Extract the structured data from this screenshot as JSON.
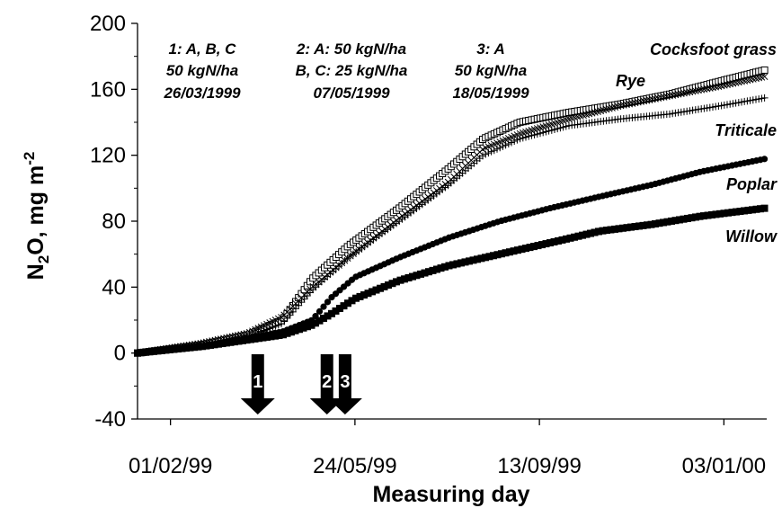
{
  "chart_data": {
    "type": "scatter",
    "xlabel": "Measuring day",
    "ylabel": "N2O, mg m-2",
    "ylabel_parts": {
      "n": "N",
      "sub": "2",
      "mid": "O, mg m",
      "sup": "-2"
    },
    "ylim": [
      -40,
      200
    ],
    "xlim": [
      "1999-01-12",
      "2000-01-29"
    ],
    "y_ticks": [
      -40,
      0,
      40,
      80,
      120,
      160,
      200
    ],
    "x_ticks": [
      {
        "date": "1999-02-01",
        "label": "01/02/99"
      },
      {
        "date": "1999-05-24",
        "label": "24/05/99"
      },
      {
        "date": "1999-09-13",
        "label": "13/09/99"
      },
      {
        "date": "2000-01-03",
        "label": "03/01/00"
      }
    ],
    "series": [
      {
        "name": "Cockfoot grass",
        "label": "Cocksfoot grass",
        "marker": "open-square",
        "x": [
          "1999-01-12",
          "1999-02-20",
          "1999-03-20",
          "1999-04-10",
          "1999-04-28",
          "1999-05-20",
          "1999-06-20",
          "1999-07-20",
          "1999-08-10",
          "1999-09-01",
          "1999-10-01",
          "1999-11-01",
          "1999-12-01",
          "2000-01-01",
          "2000-01-29"
        ],
        "y": [
          0,
          5,
          11,
          20,
          45,
          65,
          88,
          112,
          130,
          140,
          146,
          151,
          157,
          165,
          172
        ]
      },
      {
        "name": "Rye",
        "label": "Rye",
        "marker": "x",
        "x": [
          "1999-01-12",
          "1999-02-20",
          "1999-03-20",
          "1999-04-10",
          "1999-04-28",
          "1999-05-20",
          "1999-06-20",
          "1999-07-20",
          "1999-08-10",
          "1999-09-01",
          "1999-10-01",
          "1999-11-01",
          "1999-12-01",
          "2000-01-01",
          "2000-01-29"
        ],
        "y": [
          0,
          6,
          12,
          22,
          40,
          58,
          82,
          104,
          124,
          133,
          142,
          150,
          156,
          162,
          168
        ]
      },
      {
        "name": "Triticale",
        "label": "Triticale",
        "marker": "plus",
        "x": [
          "1999-01-12",
          "1999-02-20",
          "1999-03-20",
          "1999-04-10",
          "1999-04-28",
          "1999-05-20",
          "1999-06-20",
          "1999-07-20",
          "1999-08-10",
          "1999-09-01",
          "1999-10-01",
          "1999-11-01",
          "1999-12-01",
          "2000-01-01",
          "2000-01-29"
        ],
        "y": [
          0,
          5,
          10,
          18,
          38,
          58,
          80,
          102,
          120,
          130,
          138,
          142,
          145,
          150,
          155
        ]
      },
      {
        "name": "Poplar",
        "label": "Poplar",
        "marker": "filled-circle",
        "x": [
          "1999-01-12",
          "1999-02-20",
          "1999-03-20",
          "1999-04-10",
          "1999-04-28",
          "1999-05-10",
          "1999-05-24",
          "1999-06-20",
          "1999-07-20",
          "1999-08-20",
          "1999-09-20",
          "1999-10-20",
          "1999-11-20",
          "1999-12-20",
          "2000-01-29"
        ],
        "y": [
          0,
          4,
          9,
          13,
          20,
          34,
          46,
          58,
          70,
          80,
          88,
          95,
          102,
          110,
          118
        ]
      },
      {
        "name": "Willow",
        "label": "Willow",
        "marker": "filled-square",
        "x": [
          "1999-01-12",
          "1999-02-20",
          "1999-03-20",
          "1999-04-10",
          "1999-04-28",
          "1999-05-10",
          "1999-05-24",
          "1999-06-20",
          "1999-07-20",
          "1999-08-20",
          "1999-09-20",
          "1999-10-20",
          "1999-11-20",
          "1999-12-20",
          "2000-01-29"
        ],
        "y": [
          0,
          4,
          8,
          11,
          17,
          24,
          33,
          44,
          53,
          60,
          67,
          74,
          78,
          83,
          88
        ]
      }
    ],
    "annotations": [
      {
        "lines": [
          "1:  A, B, C",
          "50 kgN/ha",
          "26/03/1999"
        ]
      },
      {
        "lines": [
          "2: A: 50 kgN/ha",
          "B, C: 25 kgN/ha",
          "07/05/1999"
        ]
      },
      {
        "lines": [
          "3: A",
          "50 kgN/ha",
          "18/05/1999"
        ]
      }
    ],
    "arrows": [
      {
        "label": "1",
        "date": "1999-03-26"
      },
      {
        "label": "2",
        "date": "1999-05-07"
      },
      {
        "label": "3",
        "date": "1999-05-18"
      }
    ],
    "grid": false,
    "legend": "none"
  }
}
